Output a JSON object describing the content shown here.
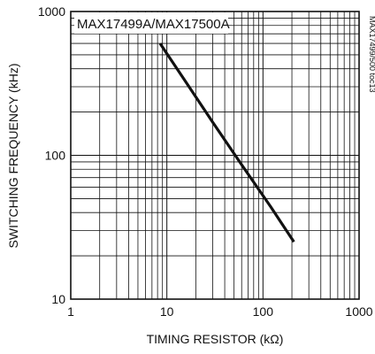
{
  "chart_data": {
    "type": "line",
    "title": "MAX17499A/MAX17500A",
    "side_note": "MAX17499/500 toc13",
    "xlabel": "TIMING RESISTOR (kΩ)",
    "ylabel": "SWITCHING FREQUENCY (kHz)",
    "x_scale": "log",
    "y_scale": "log",
    "xlim": [
      1,
      1000
    ],
    "ylim": [
      10,
      1000
    ],
    "x_ticks": [
      "1",
      "10",
      "100",
      "1000"
    ],
    "y_ticks": [
      "10",
      "100",
      "1000"
    ],
    "grid": true,
    "series": [
      {
        "x": [
          8.5,
          15,
          30,
          60,
          120,
          210
        ],
        "y": [
          600,
          340,
          170,
          86,
          44,
          25
        ]
      }
    ]
  }
}
